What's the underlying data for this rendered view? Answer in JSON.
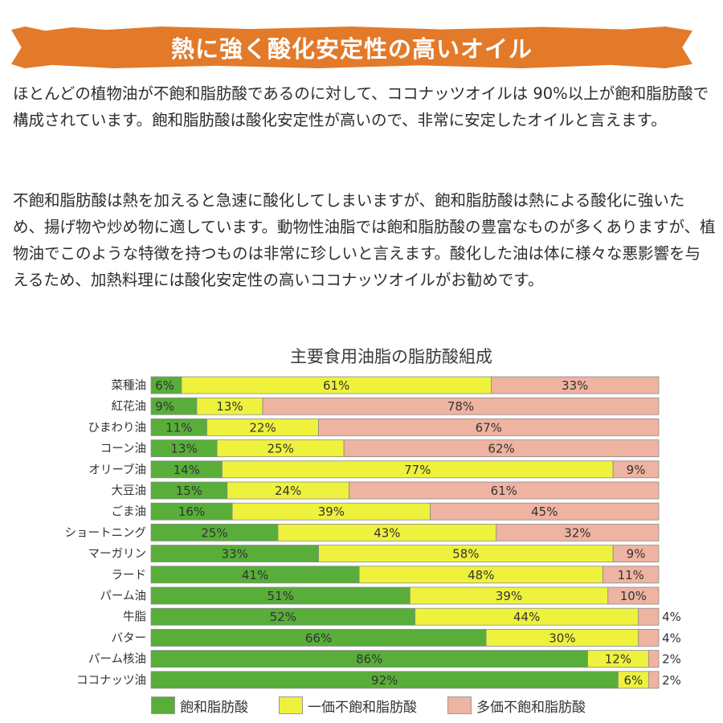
{
  "header": {
    "title": "熱に強く酸化安定性の高いオイル"
  },
  "paragraphs": [
    "ほとんどの植物油が不飽和脂肪酸であるのに対して、ココナッツオイルは 90%以上が飽和脂肪酸で構成されています。飽和脂肪酸は酸化安定性が高いので、非常に安定したオイルと言えます。",
    "不飽和脂肪酸は熱を加えると急速に酸化してしまいますが、飽和脂肪酸は熱による酸化に強いため、揚げ物や炒め物に適しています。動物性油脂では飽和脂肪酸の豊富なものが多くありますが、植物油でこのような特徴を持つものは非常に珍しいと言えます。酸化した油は体に様々な悪影響を与えるため、加熱料理には酸化安定性の高いココナッツオイルがお勧めです。"
  ],
  "chart_data": {
    "type": "bar",
    "orientation": "horizontal-stacked-100",
    "title": "主要食用油脂の脂肪酸組成",
    "categories": [
      "菜種油",
      "紅花油",
      "ひまわり油",
      "コーン油",
      "オリーブ油",
      "大豆油",
      "ごま油",
      "ショートニング",
      "マーガリン",
      "ラード",
      "パーム油",
      "牛脂",
      "バター",
      "パーム核油",
      "ココナッツ油"
    ],
    "series": [
      {
        "name": "飽和脂肪酸",
        "color": "#58ae39",
        "values": [
          6,
          9,
          11,
          13,
          14,
          15,
          16,
          25,
          33,
          41,
          51,
          52,
          66,
          86,
          92
        ]
      },
      {
        "name": "一価不飽和脂肪酸",
        "color": "#eef23c",
        "values": [
          61,
          13,
          22,
          25,
          77,
          24,
          39,
          43,
          58,
          48,
          39,
          44,
          30,
          12,
          6
        ]
      },
      {
        "name": "多価不飽和脂肪酸",
        "color": "#efb3a1",
        "values": [
          33,
          78,
          67,
          62,
          9,
          61,
          45,
          32,
          9,
          11,
          10,
          4,
          4,
          2,
          2
        ]
      }
    ],
    "labels": [
      [
        "6%",
        "61%",
        "33%"
      ],
      [
        "9%",
        "13%",
        "78%"
      ],
      [
        "11%",
        "22%",
        "67%"
      ],
      [
        "13%",
        "25%",
        "62%"
      ],
      [
        "14%",
        "77%",
        "9%"
      ],
      [
        "15%",
        "24%",
        "61%"
      ],
      [
        "16%",
        "39%",
        "45%"
      ],
      [
        "25%",
        "43%",
        "32%"
      ],
      [
        "33%",
        "58%",
        "9%"
      ],
      [
        "41%",
        "48%",
        "11%"
      ],
      [
        "51%",
        "39%",
        "10%"
      ],
      [
        "52%",
        "44%",
        "4%"
      ],
      [
        "66%",
        "30%",
        "4%"
      ],
      [
        "86%",
        "12%",
        "2%"
      ],
      [
        "92%",
        "6%",
        "2%"
      ]
    ],
    "xlim": [
      0,
      100
    ],
    "legend": "bottom"
  }
}
